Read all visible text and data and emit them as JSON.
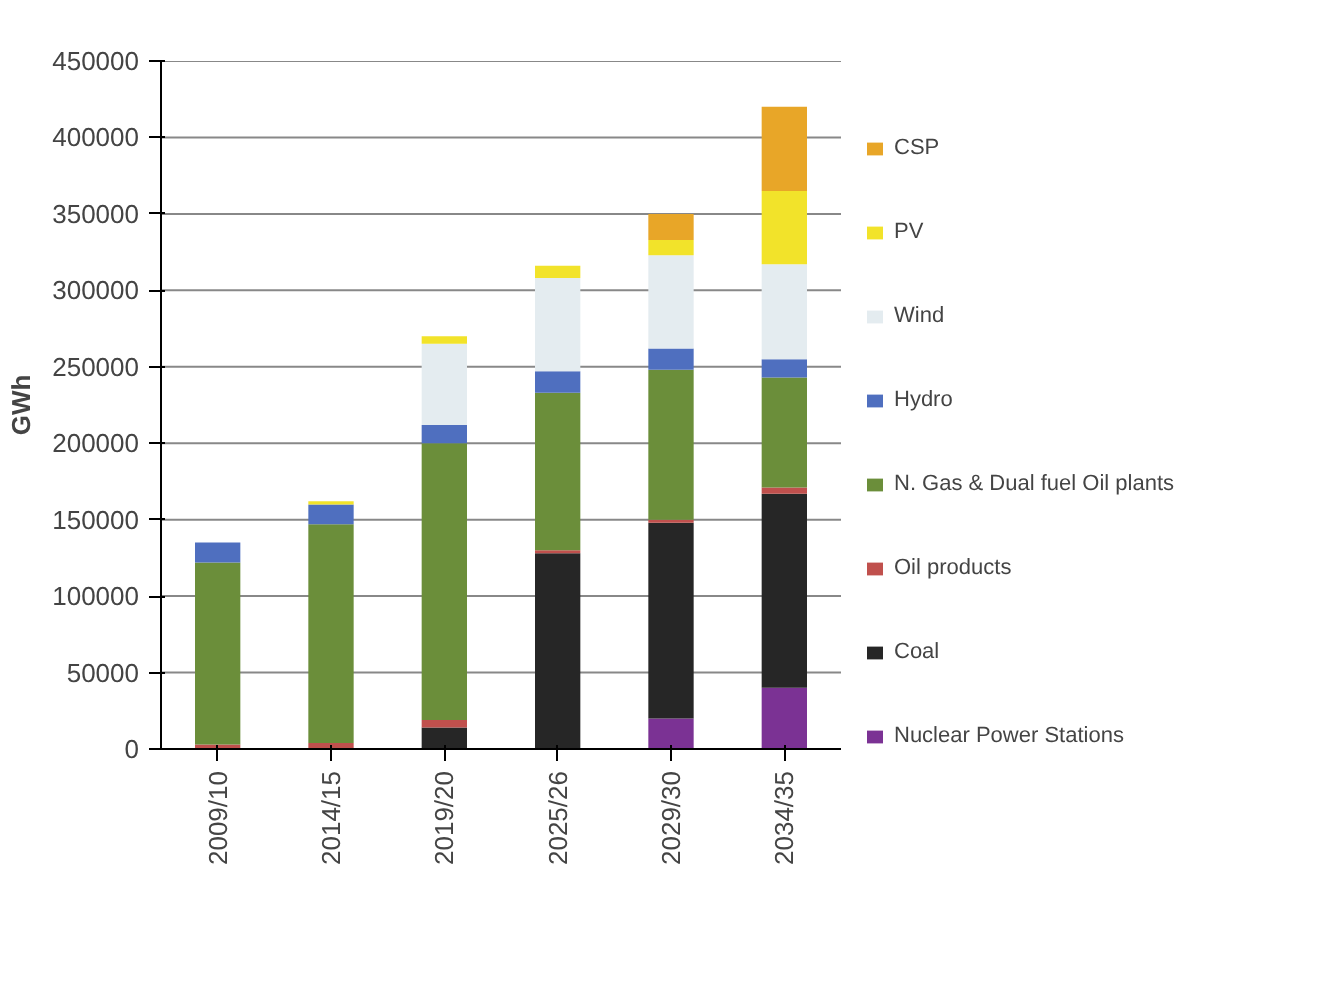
{
  "chart_data": {
    "type": "bar",
    "stacked": true,
    "ylabel": "GWh",
    "categories": [
      "2009/10",
      "2014/15",
      "2019/20",
      "2025/26",
      "2029/30",
      "2034/35"
    ],
    "series": [
      {
        "name": "Nuclear Power Stations",
        "color": "#7b3294",
        "values": [
          0,
          0,
          0,
          0,
          20000,
          40000
        ]
      },
      {
        "name": "Coal",
        "color": "#262626",
        "values": [
          0,
          0,
          14000,
          128000,
          128000,
          127000
        ]
      },
      {
        "name": "Oil products",
        "color": "#c0504d",
        "values": [
          3000,
          4000,
          5000,
          2000,
          2000,
          4000
        ]
      },
      {
        "name": "N. Gas & Dual fuel Oil plants",
        "color": "#6b8e3a",
        "values": [
          119000,
          143000,
          181000,
          103000,
          98000,
          72000
        ]
      },
      {
        "name": "Hydro",
        "color": "#4f6fbf",
        "values": [
          13000,
          13000,
          12000,
          14000,
          14000,
          12000
        ]
      },
      {
        "name": "Wind",
        "color": "#e4ecf0",
        "values": [
          0,
          0,
          53000,
          61000,
          61000,
          62000
        ]
      },
      {
        "name": "PV",
        "color": "#f2e32a",
        "values": [
          0,
          2000,
          5000,
          8000,
          10000,
          48000
        ]
      },
      {
        "name": "CSP",
        "color": "#e8a628",
        "values": [
          0,
          0,
          0,
          0,
          17000,
          55000
        ]
      }
    ],
    "ylim": [
      0,
      450000
    ],
    "yticks": [
      0,
      50000,
      100000,
      150000,
      200000,
      250000,
      300000,
      350000,
      400000,
      450000
    ],
    "grid": "y",
    "legend": "right"
  }
}
